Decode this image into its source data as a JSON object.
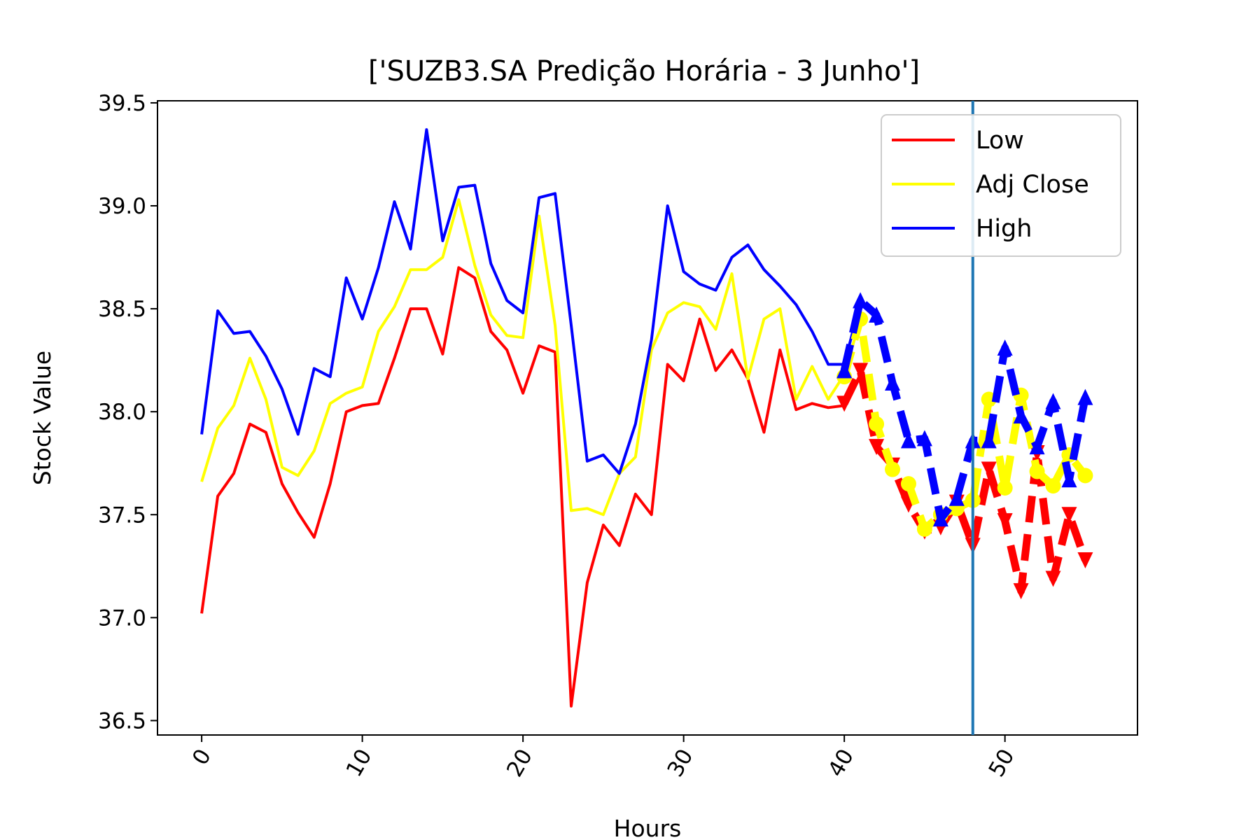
{
  "chart_data": {
    "type": "line",
    "title": "['SUZB3.SA Predição Horária - 3 Junho']",
    "xlabel": "Hours",
    "ylabel": "Stock Value",
    "xlim": [
      -2.75,
      58.25
    ],
    "ylim": [
      36.43,
      39.51
    ],
    "x_ticks": [
      0,
      10,
      20,
      30,
      40,
      50
    ],
    "y_ticks": [
      36.5,
      37.0,
      37.5,
      38.0,
      38.5,
      39.0,
      39.5
    ],
    "y_tick_labels": [
      "36.5",
      "37.0",
      "37.5",
      "38.0",
      "38.5",
      "39.0",
      "39.5"
    ],
    "x_tick_labels": [
      "0",
      "10",
      "20",
      "30",
      "40",
      "50"
    ],
    "grid": false,
    "legend_position": "upper right",
    "vertical_line": {
      "x": 48,
      "color": "#1f77b4"
    },
    "series": [
      {
        "name": "Low",
        "color": "#ff0000",
        "style": "solid",
        "x": [
          0,
          1,
          2,
          3,
          4,
          5,
          6,
          7,
          8,
          9,
          10,
          11,
          12,
          13,
          14,
          15,
          16,
          17,
          18,
          19,
          20,
          21,
          22,
          23,
          24,
          25,
          26,
          27,
          28,
          29,
          30,
          31,
          32,
          33,
          34,
          35,
          36,
          37,
          38,
          39,
          40,
          41
        ],
        "values": [
          37.02,
          37.59,
          37.7,
          37.94,
          37.9,
          37.65,
          37.51,
          37.39,
          37.65,
          38.0,
          38.03,
          38.04,
          38.26,
          38.5,
          38.5,
          38.28,
          38.7,
          38.65,
          38.39,
          38.3,
          38.09,
          38.32,
          38.29,
          36.57,
          37.17,
          37.45,
          37.35,
          37.6,
          37.5,
          38.23,
          38.15,
          38.45,
          38.2,
          38.3,
          38.16,
          37.9,
          38.3,
          38.01,
          38.04,
          38.02,
          38.03,
          38.18
        ]
      },
      {
        "name": "Adj Close",
        "color": "#ffff00",
        "style": "solid",
        "x": [
          0,
          1,
          2,
          3,
          4,
          5,
          6,
          7,
          8,
          9,
          10,
          11,
          12,
          13,
          14,
          15,
          16,
          17,
          18,
          19,
          20,
          21,
          22,
          23,
          24,
          25,
          26,
          27,
          28,
          29,
          30,
          31,
          32,
          33,
          34,
          35,
          36,
          37,
          38,
          39,
          40,
          41
        ],
        "values": [
          37.66,
          37.92,
          38.03,
          38.26,
          38.06,
          37.73,
          37.69,
          37.81,
          38.04,
          38.09,
          38.12,
          38.39,
          38.51,
          38.69,
          38.69,
          38.75,
          39.03,
          38.71,
          38.47,
          38.37,
          38.36,
          38.95,
          38.42,
          37.52,
          37.53,
          37.5,
          37.7,
          37.78,
          38.3,
          38.48,
          38.53,
          38.51,
          38.4,
          38.67,
          38.16,
          38.45,
          38.5,
          38.06,
          38.22,
          38.06,
          38.18,
          38.45
        ]
      },
      {
        "name": "High",
        "color": "#0000ff",
        "style": "solid",
        "x": [
          0,
          1,
          2,
          3,
          4,
          5,
          6,
          7,
          8,
          9,
          10,
          11,
          12,
          13,
          14,
          15,
          16,
          17,
          18,
          19,
          20,
          21,
          22,
          23,
          24,
          25,
          26,
          27,
          28,
          29,
          30,
          31,
          32,
          33,
          34,
          35,
          36,
          37,
          38,
          39,
          40,
          41
        ],
        "values": [
          37.89,
          38.49,
          38.38,
          38.39,
          38.27,
          38.11,
          37.89,
          38.21,
          38.17,
          38.65,
          38.45,
          38.7,
          39.02,
          38.79,
          39.37,
          38.83,
          39.09,
          39.1,
          38.72,
          38.54,
          38.48,
          39.04,
          39.06,
          38.42,
          37.76,
          37.79,
          37.7,
          37.94,
          38.35,
          39.0,
          38.68,
          38.62,
          38.59,
          38.75,
          38.81,
          38.69,
          38.61,
          38.52,
          38.39,
          38.23,
          38.23,
          38.53
        ]
      },
      {
        "color": "#ff0000",
        "style": "dashed",
        "marker": "v",
        "x": [
          40,
          41,
          42,
          43,
          44,
          45,
          46,
          47,
          48,
          49,
          50,
          51,
          52,
          53,
          54,
          55
        ],
        "values": [
          38.04,
          38.2,
          37.83,
          37.74,
          37.55,
          37.42,
          37.44,
          37.56,
          37.35,
          37.72,
          37.47,
          37.13,
          37.8,
          37.19,
          37.5,
          37.28
        ]
      },
      {
        "color": "#ffff00",
        "style": "dashed",
        "marker": "o",
        "x": [
          40,
          41,
          42,
          43,
          44,
          45,
          46,
          47,
          48,
          49,
          50,
          51,
          52,
          53,
          54,
          55
        ],
        "values": [
          38.17,
          38.45,
          37.94,
          37.72,
          37.65,
          37.43,
          37.5,
          37.53,
          37.57,
          38.06,
          37.63,
          38.08,
          37.71,
          37.64,
          37.79,
          37.69
        ]
      },
      {
        "color": "#0000ff",
        "style": "dashed",
        "marker": "^",
        "x": [
          40,
          41,
          42,
          43,
          44,
          45,
          46,
          47,
          48,
          49,
          50,
          51,
          52,
          53,
          54,
          55
        ],
        "values": [
          38.2,
          38.54,
          38.47,
          38.14,
          37.86,
          37.87,
          37.48,
          37.58,
          37.86,
          37.86,
          38.31,
          37.98,
          37.83,
          38.05,
          37.67,
          38.07
        ]
      }
    ]
  }
}
